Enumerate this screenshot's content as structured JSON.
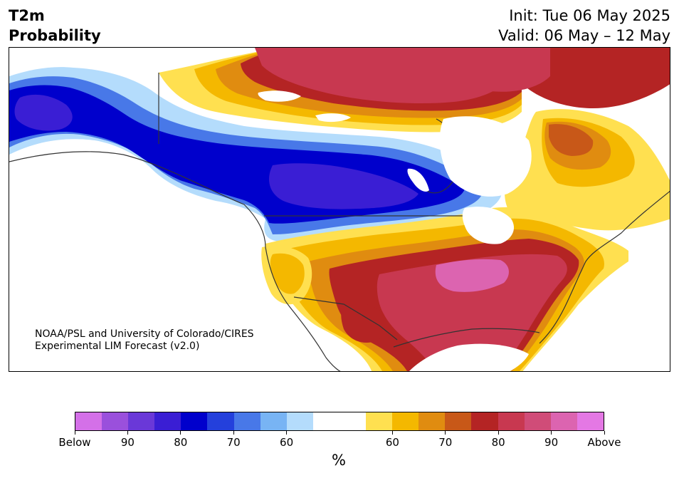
{
  "header": {
    "title_line1": "T2m",
    "title_line2": "Probability",
    "init_text": "Init: Tue 06 May 2025",
    "valid_text": "Valid: 06 May – 12 May"
  },
  "credit": {
    "line1": "NOAA/PSL and University of Colorado/CIRES",
    "line2": "Experimental LIM Forecast (v2.0)"
  },
  "colorbar": {
    "colors": [
      "#d470e8",
      "#9a50dc",
      "#6a38d8",
      "#3a1ed4",
      "#0000cc",
      "#2440dc",
      "#4878e8",
      "#78b4f4",
      "#b4dcfc",
      "#ffffff",
      "#ffffff",
      "#ffe050",
      "#f4b800",
      "#e08c10",
      "#c85818",
      "#b42424",
      "#c83850",
      "#d04c78",
      "#dc64b0",
      "#e478e4"
    ],
    "tick_labels": [
      "Below",
      "90",
      "80",
      "70",
      "60",
      "60",
      "70",
      "80",
      "90",
      "Above"
    ],
    "unit": "%"
  },
  "map": {
    "colors": {
      "below_light": "#b4dcfc",
      "below_mid": "#4878e8",
      "below_strong": "#0000cc",
      "below_core": "#3a1ed4",
      "above_light": "#ffe050",
      "above_mid": "#f4b800",
      "above_orange": "#e08c10",
      "above_strong": "#b42424",
      "above_core": "#c83850",
      "above_peak": "#dc64b0",
      "ocean": "#ffffff",
      "borders": "#333333"
    }
  }
}
